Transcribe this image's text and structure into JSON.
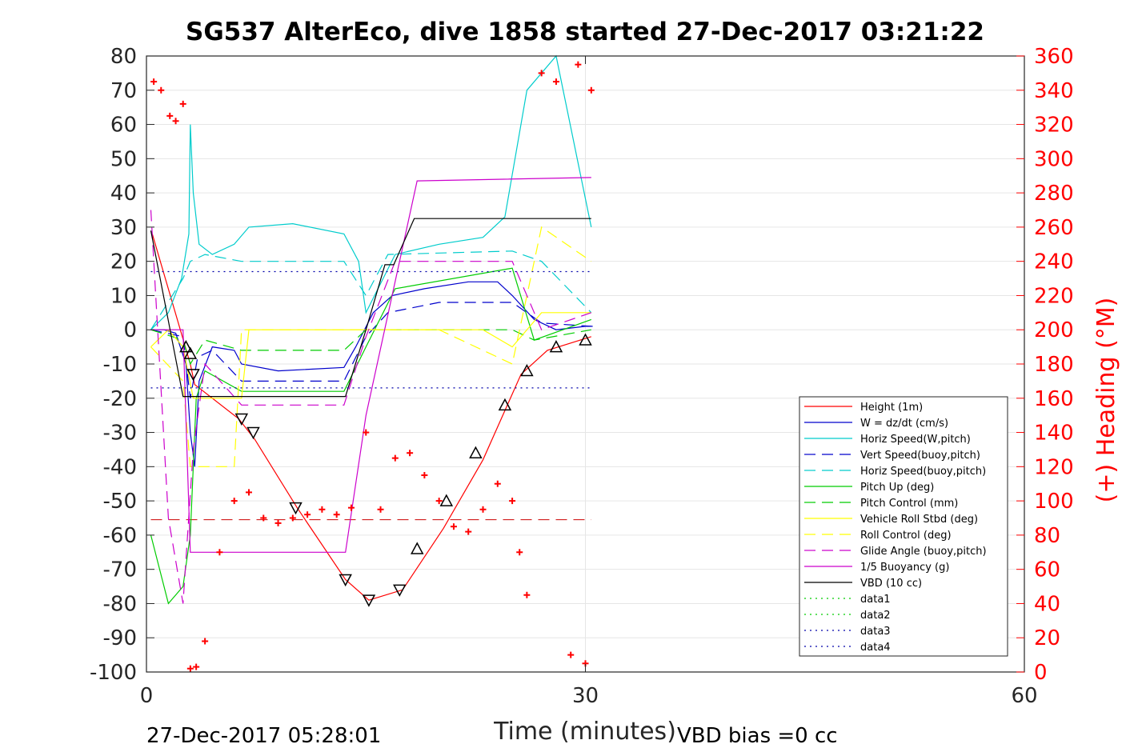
{
  "chart_data": {
    "type": "line",
    "title": "SG537 AlterEco, dive 1858 started 27-Dec-2017 03:21:22",
    "xlabel": "Time (minutes)",
    "ylabel_right": "(+) Heading (°M)",
    "xlim": [
      0,
      60
    ],
    "ylim_left": [
      -100,
      80
    ],
    "ylim_right": [
      0,
      360
    ],
    "x_ticks": [
      "0",
      "30",
      "60"
    ],
    "y_ticks_left": [
      "80",
      "70",
      "60",
      "50",
      "40",
      "30",
      "20",
      "10",
      "0",
      "-10",
      "-20",
      "-30",
      "-40",
      "-50",
      "-60",
      "-70",
      "-80",
      "-90",
      "-100"
    ],
    "y_ticks_right": [
      "360",
      "340",
      "320",
      "300",
      "280",
      "260",
      "240",
      "220",
      "200",
      "180",
      "160",
      "140",
      "120",
      "100",
      "80",
      "60",
      "40",
      "20",
      "0"
    ],
    "grid": true,
    "legend_position": "bottom-right",
    "footer_left": "27-Dec-2017 05:28:01",
    "footer_right": "VBD bias =0 cc",
    "series": [
      {
        "name": "Height (1m)",
        "color": "#ff0000",
        "style": "solid",
        "x": [
          0.4,
          3.0,
          3.3,
          6.3,
          7.4,
          10.3,
          13.6,
          15.2,
          17.5,
          20.3,
          23.0,
          25.6,
          27.4,
          30.4
        ],
        "y": [
          28,
          -10,
          -16,
          -26,
          -32,
          -52,
          -73,
          -79,
          -76,
          -58,
          -38,
          -13,
          -6,
          -2
        ]
      },
      {
        "name": "W = dz/dt (cm/s)",
        "color": "#0000cc",
        "style": "solid",
        "x": [
          0.3,
          1.2,
          2.0,
          2.7,
          3.0,
          3.3,
          3.6,
          4.5,
          6.0,
          6.5,
          9.0,
          13.5,
          14.3,
          15.5,
          16.8,
          19.0,
          22.0,
          24.0,
          25.0,
          26.5,
          28.0,
          30.0,
          30.5
        ],
        "y": [
          0,
          0,
          -1,
          -10,
          -30,
          -40,
          -15,
          -5,
          -6,
          -10,
          -12,
          -11,
          -5,
          5,
          10,
          12,
          14,
          14,
          10,
          3,
          0,
          1,
          1
        ]
      },
      {
        "name": "Horiz Speed(W,pitch)",
        "color": "#00cccc",
        "style": "solid",
        "x": [
          0.3,
          1.5,
          2.4,
          2.9,
          3.0,
          3.2,
          3.6,
          4.5,
          6.0,
          7.0,
          10.0,
          13.5,
          14.5,
          15.0,
          17.0,
          20.0,
          23.0,
          24.5,
          26.0,
          28.0,
          30.4
        ],
        "y": [
          0,
          5,
          15,
          28,
          60,
          40,
          25,
          22,
          25,
          30,
          31,
          28,
          20,
          5,
          22,
          25,
          27,
          33,
          70,
          80,
          30
        ]
      },
      {
        "name": "Vert Speed(buoy,pitch)",
        "color": "#0000cc",
        "style": "dashed",
        "x": [
          0.3,
          2.5,
          3.0,
          3.5,
          4.5,
          6.5,
          13.5,
          15.0,
          16.5,
          20.0,
          25.0,
          27.0,
          30.4
        ],
        "y": [
          0,
          -2,
          -20,
          -8,
          -6,
          -15,
          -15,
          -2,
          5,
          8,
          8,
          2,
          1
        ]
      },
      {
        "name": "Horiz Speed(buoy,pitch)",
        "color": "#00cccc",
        "style": "dashed",
        "x": [
          0.3,
          2.5,
          3.0,
          4.0,
          6.5,
          13.5,
          15.0,
          16.5,
          25.0,
          27.0,
          30.4
        ],
        "y": [
          0,
          15,
          20,
          22,
          20,
          20,
          10,
          22,
          23,
          20,
          5
        ]
      },
      {
        "name": "Pitch Up (deg)",
        "color": "#00cc00",
        "style": "solid",
        "x": [
          0.3,
          1.5,
          2.5,
          3.0,
          3.4,
          4.0,
          6.5,
          13.5,
          15.0,
          17.0,
          25.0,
          26.5,
          30.4
        ],
        "y": [
          -60,
          -80,
          -75,
          -60,
          -20,
          -12,
          -18,
          -18,
          -5,
          12,
          18,
          -3,
          3
        ]
      },
      {
        "name": "Pitch Control (mm)",
        "color": "#00cc00",
        "style": "dashed",
        "x": [
          0.3,
          2.5,
          3.0,
          4.0,
          6.5,
          13.5,
          15.0,
          17.0,
          25.0,
          26.5,
          30.4
        ],
        "y": [
          0,
          -3,
          -10,
          -3,
          -6,
          -6,
          0,
          0,
          0,
          -3,
          0
        ]
      },
      {
        "name": "Vehicle Roll Stbd (deg)",
        "color": "#ffff00",
        "style": "solid",
        "x": [
          0.3,
          1.5,
          2.5,
          3.2,
          4.0,
          6.5,
          7.0,
          13.5,
          15.0,
          17.5,
          20.0,
          23.0,
          25.0,
          27.0,
          30.4
        ],
        "y": [
          -5,
          0,
          -5,
          -20,
          -20,
          -20,
          0,
          0,
          0,
          0,
          0,
          0,
          -5,
          5,
          5
        ]
      },
      {
        "name": "Roll Control (deg)",
        "color": "#ffff00",
        "style": "dashed",
        "x": [
          0.3,
          2.5,
          3.0,
          4.0,
          6.0,
          6.5,
          13.5,
          15.0,
          17.0,
          20.0,
          25.0,
          27.0,
          30.4
        ],
        "y": [
          -5,
          -15,
          -40,
          -40,
          -40,
          0,
          0,
          0,
          0,
          0,
          -10,
          30,
          20
        ]
      },
      {
        "name": "Glide Angle (buoy,pitch)",
        "color": "#cc00cc",
        "style": "dashed",
        "x": [
          0.3,
          1.5,
          2.5,
          3.2,
          4.0,
          6.5,
          13.5,
          15.0,
          17.0,
          25.0,
          27.0,
          30.4
        ],
        "y": [
          35,
          -55,
          -80,
          -35,
          -10,
          -22,
          -22,
          -2,
          20,
          20,
          0,
          5
        ]
      },
      {
        "name": "1/5 Buoyancy (g)",
        "color": "#cc00cc",
        "style": "solid",
        "x": [
          0.3,
          2.5,
          3.0,
          6.5,
          13.6,
          15.0,
          18.5,
          30.4
        ],
        "y": [
          0,
          0,
          -65,
          -65,
          -65,
          -25,
          43.5,
          44.5
        ]
      },
      {
        "name": "VBD (10 cc)",
        "color": "#000000",
        "style": "solid",
        "x": [
          0.3,
          2.5,
          2.6,
          13.6,
          15.0,
          16.3,
          16.9,
          18.3,
          30.4
        ],
        "y": [
          29,
          -19.5,
          -19.5,
          -19.5,
          0,
          19,
          19,
          32.5,
          32.5
        ]
      },
      {
        "name": "data1",
        "color": "#00cc00",
        "style": "dotted",
        "x": [],
        "y": []
      },
      {
        "name": "data2",
        "color": "#00cc00",
        "style": "dotted",
        "x": [],
        "y": []
      },
      {
        "name": "data3",
        "color": "#0000aa",
        "style": "dotted",
        "x": [
          0.3,
          30.4
        ],
        "y": [
          17,
          17
        ]
      },
      {
        "name": "data4",
        "color": "#0000aa",
        "style": "dotted",
        "x": [
          0.3,
          30.4
        ],
        "y": [
          -17,
          -17
        ]
      }
    ],
    "reference_line": {
      "color": "#cc0000",
      "style": "dashed",
      "y": -55.5
    },
    "heading_points": {
      "color": "#ff0000",
      "marker": "+",
      "axis": "right",
      "x": [
        0.5,
        1.0,
        1.6,
        2.0,
        2.5,
        3.0,
        3.4,
        4.0,
        5.0,
        6.0,
        7.0,
        8.0,
        9.0,
        10.0,
        11.0,
        12.0,
        13.0,
        14.0,
        15.0,
        16.0,
        17.0,
        18.0,
        19.0,
        20.0,
        21.0,
        22.0,
        23.0,
        24.0,
        25.0,
        25.5,
        26.0,
        27.0,
        28.0,
        29.0,
        29.5,
        30.0,
        30.4
      ],
      "y": [
        345,
        340,
        325,
        322,
        332,
        2,
        3,
        18,
        70,
        100,
        105,
        90,
        87,
        90,
        92,
        95,
        92,
        96,
        140,
        95,
        125,
        128,
        115,
        100,
        85,
        82,
        95,
        110,
        100,
        70,
        45,
        350,
        345,
        10,
        355,
        5,
        340
      ]
    },
    "dive_markers": {
      "color": "#000000",
      "marker": "triangle-down",
      "x": [
        3.2,
        6.5,
        7.3,
        10.2,
        13.6,
        15.2,
        17.3
      ],
      "y": [
        -13,
        -26,
        -30,
        -52,
        -73,
        -79,
        -76
      ]
    },
    "climb_markers": {
      "color": "#000000",
      "marker": "triangle-up",
      "x": [
        2.7,
        3.0,
        18.5,
        20.5,
        22.5,
        24.5,
        26.0,
        28.0,
        30.0
      ],
      "y": [
        -5,
        -7,
        -64,
        -50,
        -36,
        -22,
        -12,
        -5,
        -3
      ]
    }
  }
}
